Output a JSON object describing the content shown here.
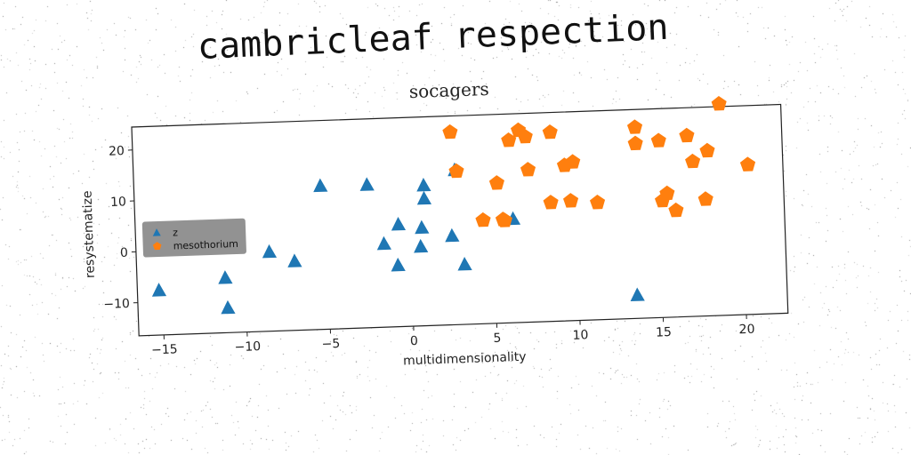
{
  "title": "cambricleaf respection",
  "chart_data": {
    "type": "scatter",
    "title": "socagers",
    "xlabel": "multidimensionality",
    "ylabel": "resystematize",
    "xlim": [
      -16.5,
      22.5
    ],
    "ylim": [
      -16.5,
      24.5
    ],
    "x_ticks": [
      -15,
      -10,
      -5,
      0,
      5,
      10,
      15,
      20
    ],
    "y_ticks": [
      -10,
      0,
      10,
      20
    ],
    "grid": false,
    "legend_position": "center-left",
    "series": [
      {
        "name": "z",
        "marker": "triangle",
        "color": "#1f77b4",
        "points": [
          [
            -15.2,
            -7.8
          ],
          [
            -11.2,
            -5.8
          ],
          [
            -11.1,
            -11.7
          ],
          [
            -8.5,
            -1.0
          ],
          [
            -7.0,
            -3.0
          ],
          [
            -5.3,
            11.6
          ],
          [
            -2.5,
            11.5
          ],
          [
            -1.6,
            -0.2
          ],
          [
            -0.7,
            3.5
          ],
          [
            -0.8,
            -4.5
          ],
          [
            0.9,
            11.0
          ],
          [
            0.9,
            8.4
          ],
          [
            0.7,
            2.7
          ],
          [
            0.6,
            -1.0
          ],
          [
            2.5,
            0.9
          ],
          [
            3.2,
            -4.8
          ],
          [
            2.8,
            13.8
          ],
          [
            6.2,
            3.8
          ],
          [
            13.5,
            -12.0
          ]
        ]
      },
      {
        "name": "mesothorium",
        "marker": "pentagon",
        "color": "#ff7f0e",
        "points": [
          [
            2.6,
            21.3
          ],
          [
            2.9,
            13.6
          ],
          [
            4.4,
            3.8
          ],
          [
            5.3,
            11.0
          ],
          [
            5.6,
            3.8
          ],
          [
            5.7,
            3.6
          ],
          [
            6.1,
            19.3
          ],
          [
            6.7,
            21.2
          ],
          [
            7.1,
            19.9
          ],
          [
            7.2,
            13.4
          ],
          [
            8.6,
            20.6
          ],
          [
            8.5,
            6.8
          ],
          [
            9.4,
            14.0
          ],
          [
            9.7,
            7.0
          ],
          [
            9.9,
            14.6
          ],
          [
            11.3,
            6.5
          ],
          [
            13.7,
            21.0
          ],
          [
            13.7,
            17.8
          ],
          [
            15.1,
            18.2
          ],
          [
            15.2,
            6.4
          ],
          [
            15.5,
            7.8
          ],
          [
            16.0,
            4.4
          ],
          [
            16.8,
            19.0
          ],
          [
            17.1,
            13.9
          ],
          [
            17.8,
            6.4
          ],
          [
            18.0,
            15.9
          ],
          [
            18.8,
            25.0
          ],
          [
            20.4,
            12.9
          ]
        ]
      }
    ]
  }
}
